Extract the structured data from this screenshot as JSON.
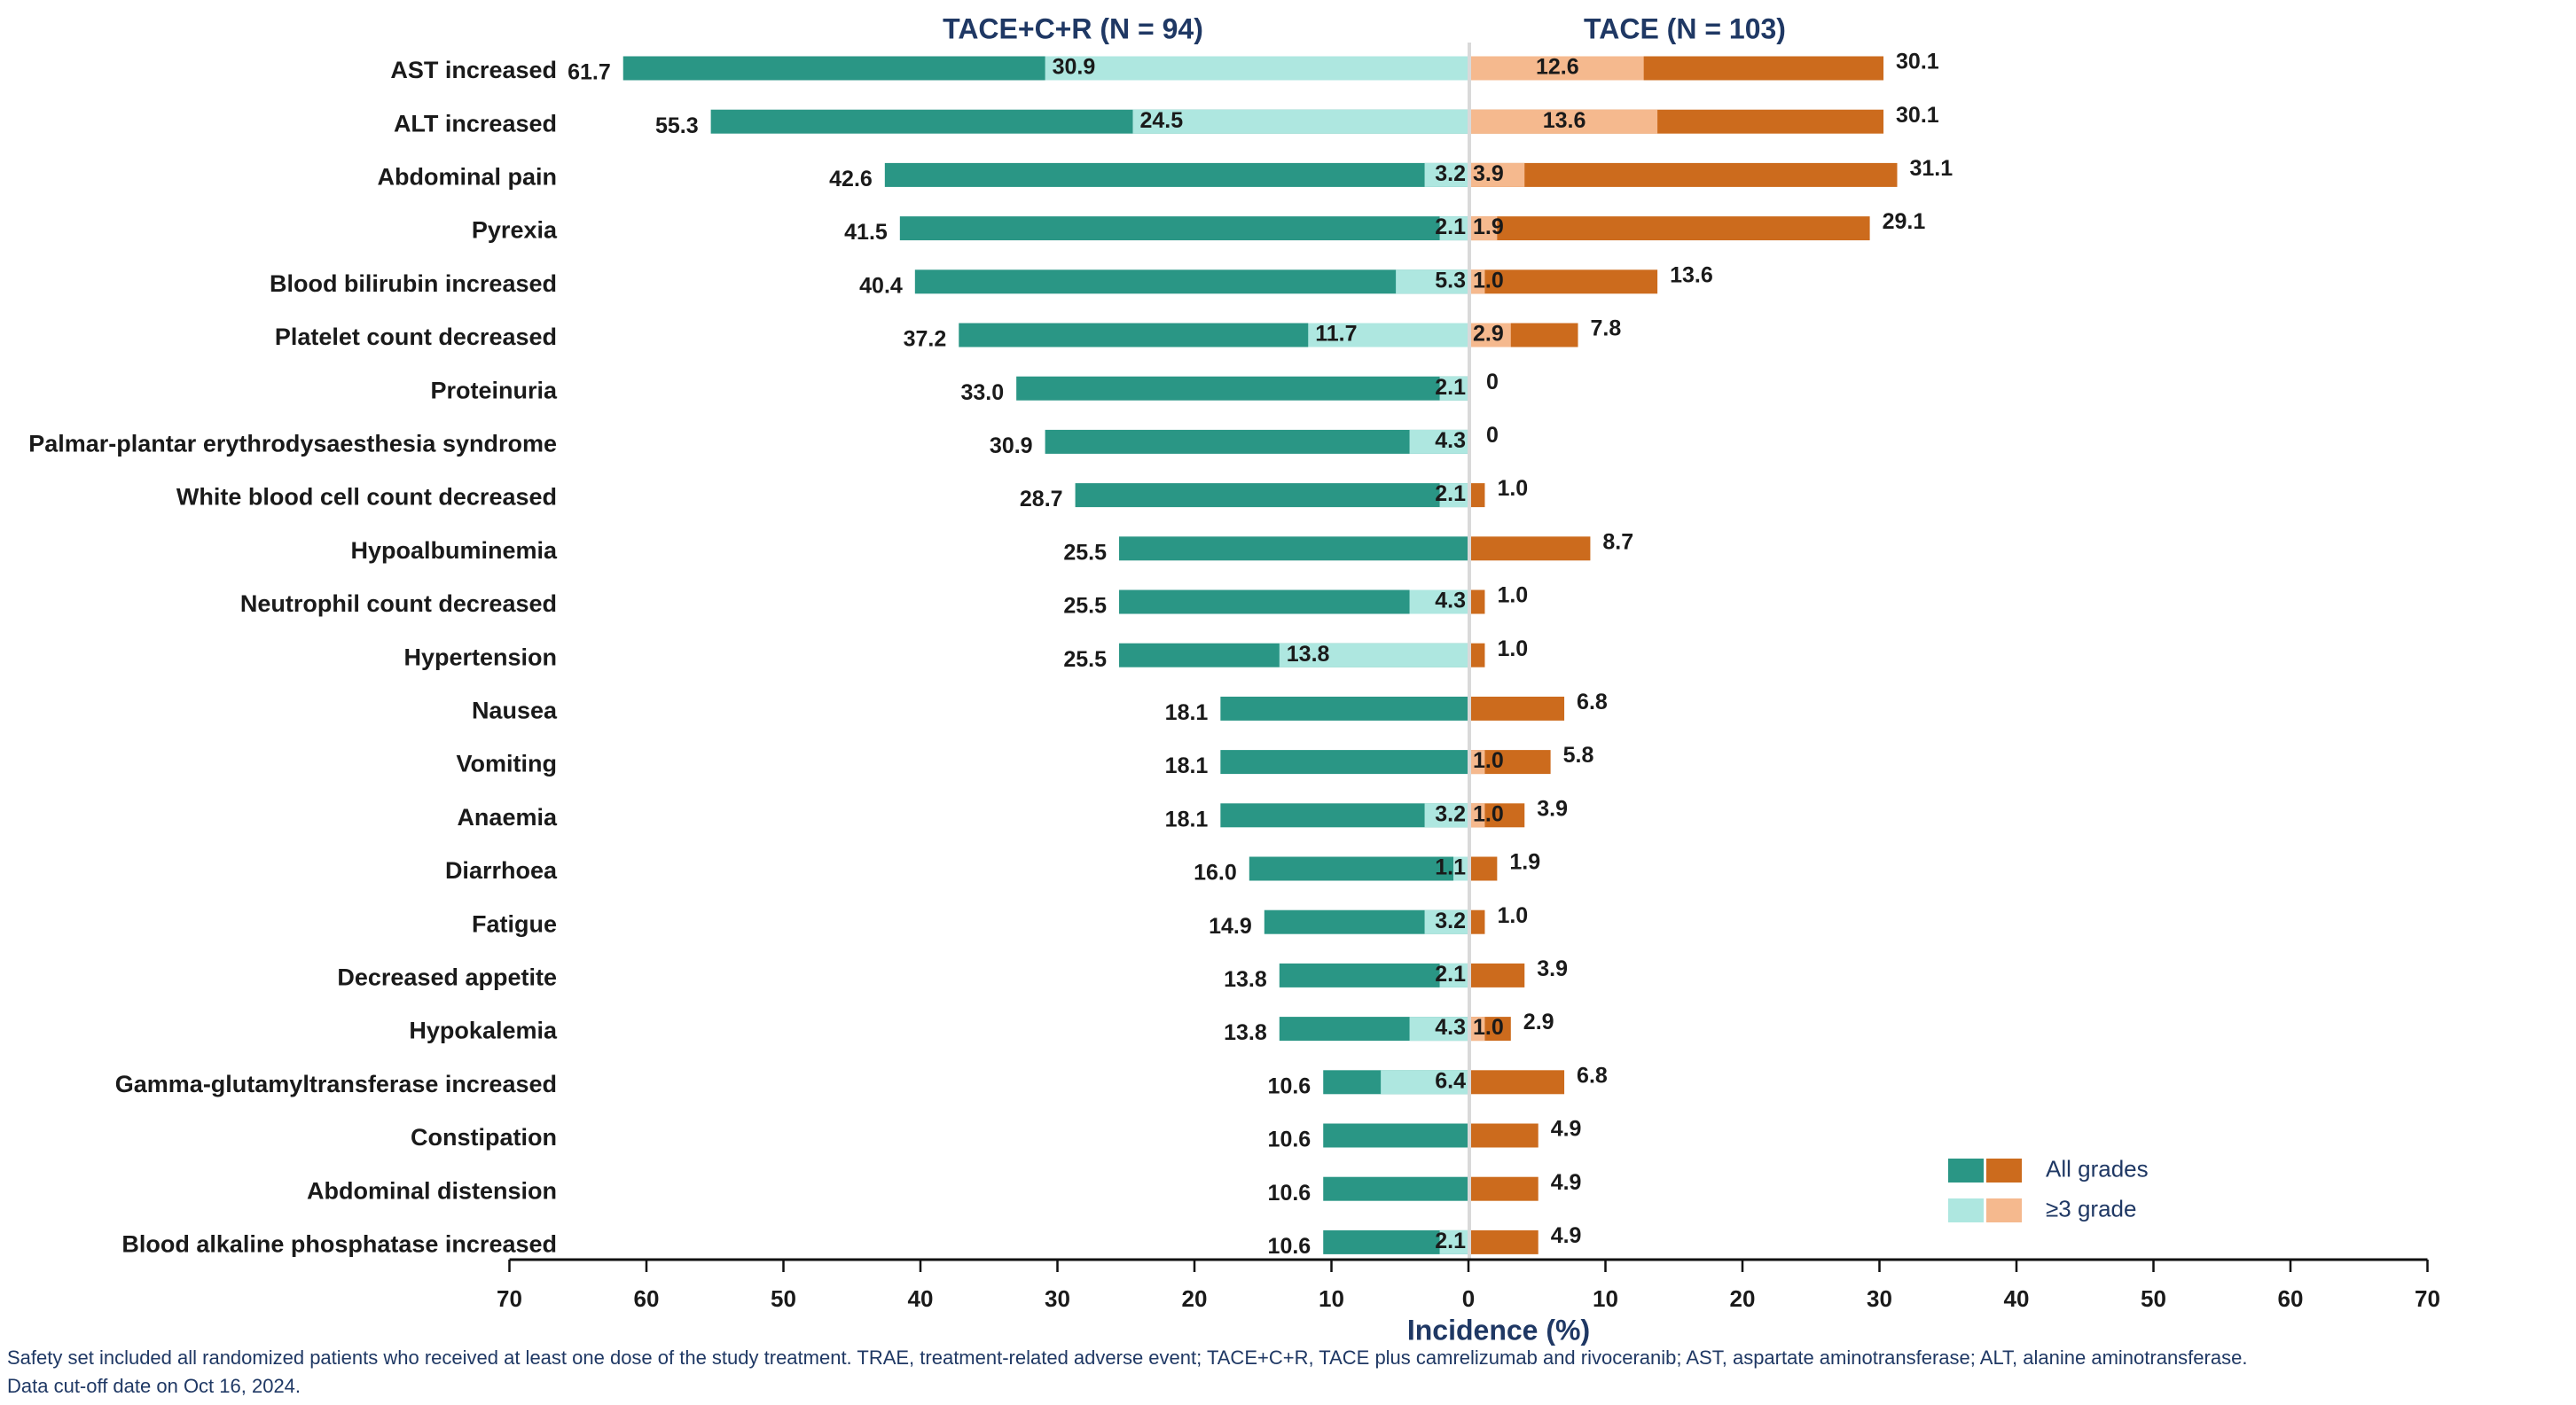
{
  "chart_data": {
    "type": "bar",
    "orientation": "horizontal-butterfly",
    "xlabel": "Incidence (%)",
    "xlim": [
      -70,
      70
    ],
    "xticks": [
      70,
      60,
      50,
      40,
      30,
      20,
      10,
      0,
      10,
      20,
      30,
      40,
      50,
      60,
      70
    ],
    "grid": false,
    "legend_position": "bottom-right",
    "legend": [
      "All grades",
      "≥3 grade"
    ],
    "groups": [
      {
        "title": "TACE+C+R (N = 94)",
        "side": "left",
        "color_all": "#2a9685",
        "color_g3": "#aee7e0"
      },
      {
        "title": "TACE (N = 103)",
        "side": "right",
        "color_all": "#cc6b1d",
        "color_g3": "#f5b98e"
      }
    ],
    "categories": [
      "AST increased",
      "ALT increased",
      "Abdominal pain",
      "Pyrexia",
      "Blood bilirubin increased",
      "Platelet count decreased",
      "Proteinuria",
      "Palmar-plantar erythrodysaesthesia syndrome",
      "White blood cell count decreased",
      "Hypoalbuminemia",
      "Neutrophil count decreased",
      "Hypertension",
      "Nausea",
      "Vomiting",
      "Anaemia",
      "Diarrhoea",
      "Fatigue",
      "Decreased appetite",
      "Hypokalemia",
      "Gamma-glutamyltransferase increased",
      "Constipation",
      "Abdominal distension",
      "Blood alkaline phosphatase increased"
    ],
    "series": [
      {
        "name": "All grades",
        "group": "TACE+C+R (N = 94)",
        "values": [
          61.7,
          55.3,
          42.6,
          41.5,
          40.4,
          37.2,
          33.0,
          30.9,
          28.7,
          25.5,
          25.5,
          25.5,
          18.1,
          18.1,
          18.1,
          16.0,
          14.9,
          13.8,
          13.8,
          10.6,
          10.6,
          10.6,
          10.6
        ],
        "labels": [
          "61.7",
          "55.3",
          "42.6",
          "41.5",
          "40.4",
          "37.2",
          "33.0",
          "30.9",
          "28.7",
          "25.5",
          "25.5",
          "25.5",
          "18.1",
          "18.1",
          "18.1",
          "16.0",
          "14.9",
          "13.8",
          "13.8",
          "10.6",
          "10.6",
          "10.6",
          "10.6"
        ]
      },
      {
        "name": "≥3 grade",
        "group": "TACE+C+R (N = 94)",
        "values": [
          30.9,
          24.5,
          3.2,
          2.1,
          5.3,
          11.7,
          2.1,
          4.3,
          2.1,
          null,
          4.3,
          13.8,
          null,
          null,
          3.2,
          1.1,
          3.2,
          2.1,
          4.3,
          6.4,
          null,
          null,
          2.1
        ],
        "labels": [
          "30.9",
          "24.5",
          "3.2",
          "2.1",
          "5.3",
          "11.7",
          "2.1",
          "4.3",
          "2.1",
          null,
          "4.3",
          "13.8",
          null,
          null,
          "3.2",
          "1.1",
          "3.2",
          "2.1",
          "4.3",
          "6.4",
          null,
          null,
          "2.1"
        ]
      },
      {
        "name": "All grades",
        "group": "TACE (N = 103)",
        "values": [
          30.1,
          30.1,
          31.1,
          29.1,
          13.6,
          7.8,
          0,
          0,
          1.0,
          8.7,
          1.0,
          1.0,
          6.8,
          5.8,
          3.9,
          1.9,
          1.0,
          3.9,
          2.9,
          6.8,
          4.9,
          4.9,
          4.9
        ],
        "labels": [
          "30.1",
          "30.1",
          "31.1",
          "29.1",
          "13.6",
          "7.8",
          "0",
          "0",
          "1.0",
          "8.7",
          "1.0",
          "1.0",
          "6.8",
          "5.8",
          "3.9",
          "1.9",
          "1.0",
          "3.9",
          "2.9",
          "6.8",
          "4.9",
          "4.9",
          "4.9"
        ]
      },
      {
        "name": "≥3 grade",
        "group": "TACE (N = 103)",
        "values": [
          12.6,
          13.6,
          3.9,
          1.9,
          1.0,
          2.9,
          null,
          null,
          null,
          null,
          null,
          null,
          null,
          1.0,
          1.0,
          null,
          null,
          null,
          1.0,
          null,
          null,
          null,
          null
        ],
        "labels": [
          "12.6",
          "13.6",
          "3.9",
          "1.9",
          "1.0",
          "2.9",
          null,
          null,
          null,
          null,
          null,
          null,
          null,
          "1.0",
          "1.0",
          null,
          null,
          null,
          "1.0",
          null,
          null,
          null,
          null
        ]
      }
    ]
  },
  "footnote": {
    "line1": "Safety set included all randomized patients who received at least one dose of the study treatment. TRAE, treatment-related adverse event; TACE+C+R, TACE plus camrelizumab and rivoceranib; AST, aspartate aminotransferase; ALT, alanine aminotransferase.",
    "line2": "Data cut-off date on Oct 16, 2024."
  }
}
